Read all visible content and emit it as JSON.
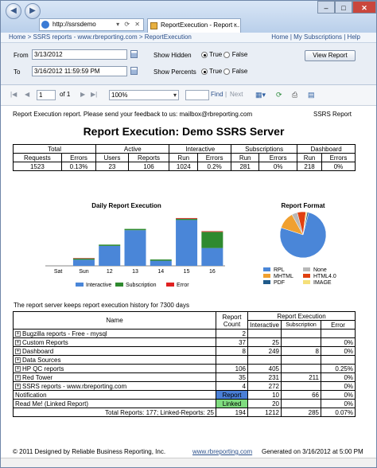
{
  "browser": {
    "address": "http://ssrsdemo",
    "tab_title": "ReportExecution - Report ...",
    "close_tab": "×"
  },
  "breadcrumb": {
    "path": "Home > SSRS reports - www.rbreporting.com > ReportExecution",
    "links": "Home | My Subscriptions | Help"
  },
  "params": {
    "from_label": "From",
    "from_value": "3/13/2012",
    "to_label": "To",
    "to_value": "3/16/2012 11:59:59 PM",
    "show_hidden_label": "Show Hidden",
    "show_percents_label": "Show Percents",
    "true_label": "True",
    "false_label": "False",
    "view_report": "View Report"
  },
  "toolbar": {
    "page": "1",
    "of_pages": "of 1",
    "zoom": "100%",
    "find": "Find",
    "next": "Next"
  },
  "report": {
    "intro": "Report Execution report. Please send your feedback to us: mailbox@rbreporting.com",
    "tag": "SSRS Report",
    "title": "Report Execution: Demo SSRS Server",
    "summary_groups": [
      "Total",
      "Active",
      "Interactive",
      "Subscriptions",
      "Dashboard"
    ],
    "summary_sub": [
      "Requests",
      "Errors",
      "Users",
      "Reports",
      "Run",
      "Errors",
      "Run",
      "Errors",
      "Run",
      "Errors"
    ],
    "summary_vals": [
      "1523",
      "0.13%",
      "23",
      "106",
      "1024",
      "0.2%",
      "281",
      "0%",
      "218",
      "0%"
    ],
    "history_note": "The report server keeps report execution history for 7300 days",
    "detail_headers": {
      "name": "Name",
      "report_count": "Report Count",
      "exec": "Report Execution",
      "interactive": "Interactive",
      "subscription": "Subscription",
      "error": "Error"
    },
    "rows": [
      {
        "name": "Bugzilla reports - Free - mysql",
        "count": "2",
        "inter": "",
        "sub": "",
        "err": ""
      },
      {
        "name": "Custom Reports",
        "count": "37",
        "inter": "25",
        "sub": "",
        "err": "0%"
      },
      {
        "name": "Dashboard",
        "count": "8",
        "inter": "249",
        "sub": "8",
        "err": "0%"
      },
      {
        "name": "Data Sources",
        "count": "",
        "inter": "",
        "sub": "",
        "err": ""
      },
      {
        "name": "HP QC reports",
        "count": "106",
        "inter": "405",
        "sub": "",
        "err": "0.25%"
      },
      {
        "name": "Red Tower",
        "count": "35",
        "inter": "231",
        "sub": "211",
        "err": "0%"
      },
      {
        "name": "SSRS reports - www.rbreporting.com",
        "count": "4",
        "inter": "272",
        "sub": "",
        "err": "0%"
      }
    ],
    "notification": {
      "name": "Notification",
      "badge": "Report",
      "inter": "10",
      "sub": "66",
      "err": "0%"
    },
    "readme": {
      "name": "Read Me! (Linked Report)",
      "badge": "Linked",
      "inter": "20",
      "sub": "",
      "err": "0%"
    },
    "totals": {
      "label": "Total Reports: 177; Linked-Reports: 25",
      "count": "194",
      "inter": "1212",
      "sub": "285",
      "err": "0.07%"
    }
  },
  "footer": {
    "left": "© 2011 Designed by Reliable Business Reporting, Inc.",
    "link": "www.rbreporting.com",
    "right": "Generated on 3/16/2012 at 5:00 PM"
  },
  "chart_data": [
    {
      "type": "bar",
      "title": "Daily Report Execution",
      "categories": [
        "Sat",
        "Sun",
        "12",
        "13",
        "14",
        "15",
        "16"
      ],
      "series": [
        {
          "name": "Interactive",
          "values": [
            0,
            72,
            235,
            420,
            60,
            540,
            210
          ]
        },
        {
          "name": "Subscription",
          "values": [
            0,
            15,
            15,
            15,
            15,
            15,
            190
          ]
        },
        {
          "name": "Error",
          "values": [
            0,
            5,
            0,
            0,
            0,
            8,
            8
          ]
        }
      ],
      "colors": [
        "#4a86d8",
        "#2f8a2f",
        "#e02020"
      ],
      "ylim": [
        0,
        600
      ]
    },
    {
      "type": "pie",
      "title": "Report Format",
      "slices": [
        {
          "name": "RPL",
          "value": 76,
          "color": "#4a86d8"
        },
        {
          "name": "MHTML",
          "value": 12,
          "color": "#f0a030"
        },
        {
          "name": "None",
          "value": 4,
          "color": "#b8b8b8"
        },
        {
          "name": "HTML4.0",
          "value": 6,
          "color": "#e04010"
        },
        {
          "name": "IMAGE",
          "value": 1,
          "color": "#f5e07a"
        },
        {
          "name": "PDF",
          "value": 1,
          "color": "#1f5a8a"
        }
      ]
    }
  ]
}
